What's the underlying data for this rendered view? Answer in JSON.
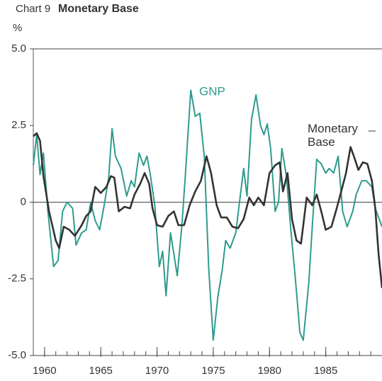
{
  "chart_data": {
    "type": "line",
    "chart_label": "Chart 9",
    "title": "Monetary Base",
    "y_label": "%",
    "xlim": [
      1959,
      1990
    ],
    "xticks": [
      1960,
      1965,
      1970,
      1975,
      1980,
      1985
    ],
    "ylim": [
      -5,
      5
    ],
    "yticks": [
      {
        "value": 5,
        "label": "5.0"
      },
      2.5,
      0,
      -2.5,
      {
        "value": -5,
        "label": "-5.0"
      }
    ],
    "series": [
      {
        "name": "GNP",
        "color": "#2f9b8d",
        "x": [
          1959.0,
          1959.3,
          1959.6,
          1959.9,
          1960.3,
          1960.8,
          1961.2,
          1961.6,
          1962.0,
          1962.5,
          1962.8,
          1963.3,
          1963.7,
          1964.1,
          1964.5,
          1964.9,
          1965.3,
          1965.7,
          1966.0,
          1966.3,
          1966.8,
          1967.3,
          1967.7,
          1968.0,
          1968.4,
          1968.8,
          1969.1,
          1969.4,
          1969.8,
          1970.2,
          1970.5,
          1970.8,
          1971.2,
          1971.5,
          1971.8,
          1972.2,
          1972.5,
          1973.0,
          1973.4,
          1973.8,
          1974.2,
          1974.6,
          1975.0,
          1975.4,
          1975.8,
          1976.1,
          1976.5,
          1977.0,
          1977.3,
          1977.7,
          1978.0,
          1978.4,
          1978.8,
          1979.2,
          1979.5,
          1979.8,
          1980.1,
          1980.5,
          1980.8,
          1981.1,
          1981.5,
          1981.9,
          1982.3,
          1982.7,
          1983.0,
          1983.5,
          1983.8,
          1984.2,
          1984.6,
          1985.0,
          1985.3,
          1985.7,
          1986.1,
          1986.5,
          1986.9,
          1987.4,
          1987.7,
          1988.2,
          1988.6,
          1989.1,
          1989.4,
          1990.0
        ],
        "values": [
          1.2,
          2.2,
          0.9,
          1.6,
          -0.3,
          -2.1,
          -1.9,
          -0.3,
          0.0,
          -0.2,
          -1.4,
          -1.0,
          -0.9,
          0.0,
          -0.6,
          -0.9,
          -0.1,
          0.8,
          2.4,
          1.5,
          1.1,
          0.2,
          0.7,
          0.5,
          1.6,
          1.2,
          1.5,
          0.9,
          -0.1,
          -2.1,
          -1.6,
          -3.05,
          -1.0,
          -1.7,
          -2.4,
          -0.8,
          0.8,
          3.65,
          2.8,
          2.9,
          1.5,
          -2.2,
          -4.5,
          -3.1,
          -2.2,
          -1.25,
          -1.5,
          -1.0,
          -0.1,
          1.1,
          0.2,
          2.7,
          3.5,
          2.5,
          2.2,
          2.55,
          1.75,
          -0.3,
          0.0,
          1.75,
          0.85,
          -0.9,
          -2.5,
          -4.25,
          -4.5,
          -2.6,
          -0.8,
          1.4,
          1.25,
          0.95,
          1.1,
          0.95,
          1.5,
          -0.3,
          -0.8,
          -0.3,
          0.25,
          0.7,
          0.7,
          0.5,
          -0.2,
          -0.8
        ]
      },
      {
        "name": "Monetary Base",
        "color": "#333333",
        "x": [
          1959.0,
          1959.3,
          1959.6,
          1959.9,
          1960.4,
          1961.0,
          1961.3,
          1961.7,
          1962.2,
          1962.7,
          1963.3,
          1963.7,
          1964.1,
          1964.5,
          1965.0,
          1965.5,
          1965.9,
          1966.2,
          1966.6,
          1967.1,
          1967.6,
          1968.0,
          1968.5,
          1968.9,
          1969.3,
          1969.6,
          1970.0,
          1970.5,
          1971.0,
          1971.5,
          1971.9,
          1972.4,
          1972.9,
          1973.4,
          1973.9,
          1974.4,
          1974.8,
          1975.3,
          1975.7,
          1976.2,
          1976.7,
          1977.2,
          1977.7,
          1978.2,
          1978.6,
          1979.0,
          1979.5,
          1980.0,
          1980.5,
          1980.9,
          1981.2,
          1981.6,
          1982.0,
          1982.4,
          1982.8,
          1983.3,
          1983.8,
          1984.2,
          1984.6,
          1985.0,
          1985.5,
          1985.9,
          1986.3,
          1986.8,
          1987.2,
          1987.5,
          1987.9,
          1988.3,
          1988.7,
          1989.1,
          1989.4,
          1989.7,
          1990.0
        ],
        "values": [
          2.15,
          2.25,
          2.0,
          0.85,
          -0.3,
          -1.25,
          -1.5,
          -0.8,
          -0.9,
          -1.1,
          -0.75,
          -0.45,
          -0.3,
          0.5,
          0.3,
          0.5,
          0.85,
          0.8,
          -0.3,
          -0.15,
          -0.2,
          0.25,
          0.6,
          0.95,
          0.6,
          -0.2,
          -0.75,
          -0.8,
          -0.45,
          -0.3,
          -0.75,
          -0.75,
          -0.1,
          0.35,
          0.7,
          1.5,
          0.95,
          -0.1,
          -0.5,
          -0.5,
          -0.8,
          -0.85,
          -0.55,
          0.15,
          -0.1,
          0.15,
          -0.1,
          0.95,
          1.2,
          1.3,
          0.35,
          0.95,
          -0.55,
          -1.25,
          -1.35,
          0.15,
          -0.1,
          0.25,
          -0.3,
          -0.9,
          -0.8,
          -0.3,
          0.25,
          0.95,
          1.8,
          1.5,
          1.05,
          1.3,
          1.25,
          0.7,
          -0.2,
          -1.7,
          -2.8
        ]
      }
    ]
  }
}
